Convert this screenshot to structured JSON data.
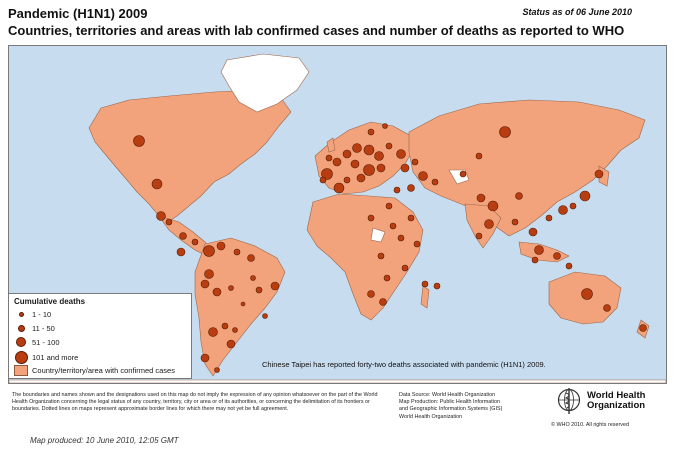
{
  "header": {
    "title": "Pandemic (H1N1) 2009",
    "subtitle": "Countries, territories and areas with lab confirmed cases and number of deaths as reported to WHO",
    "status": "Status as of 06 June 2010"
  },
  "legend": {
    "title": "Cumulative deaths",
    "items": [
      {
        "label": "1 - 10"
      },
      {
        "label": "11 - 50"
      },
      {
        "label": "51 - 100"
      },
      {
        "label": "101 and more"
      }
    ],
    "area_label": "Country/territory/area with confirmed cases"
  },
  "annotation": "Chinese Taipei has reported forty-two deaths associated with pandemic (H1N1) 2009.",
  "footer": {
    "disclaimer": "The boundaries and names shown and the designations used on this map do not imply the expression of any opinion whatsoever on the part of the World Health Organization concerning the legal status of any country, territory, city or area or of its authorities, or concerning the delimitation of its frontiers or boundaries. Dotted lines on maps represent approximate border lines for which there may not yet be full agreement.",
    "produced": "Map produced: 10 June 2010, 12:05 GMT",
    "data_source": "Data Source: World Health Organization",
    "map_production": "Map Production: Public Health Information",
    "map_production_2": "and Geographic Information Systems (GIS)",
    "org": "World Health Organization",
    "who_name_1": "World Health",
    "who_name_2": "Organization",
    "copyright": "© WHO 2010. All rights reserved"
  },
  "colors": {
    "ocean": "#c7dcef",
    "affected_land": "#f2a37c",
    "unaffected_land": "#ffffff",
    "deaths_marker": "#b83d10"
  }
}
